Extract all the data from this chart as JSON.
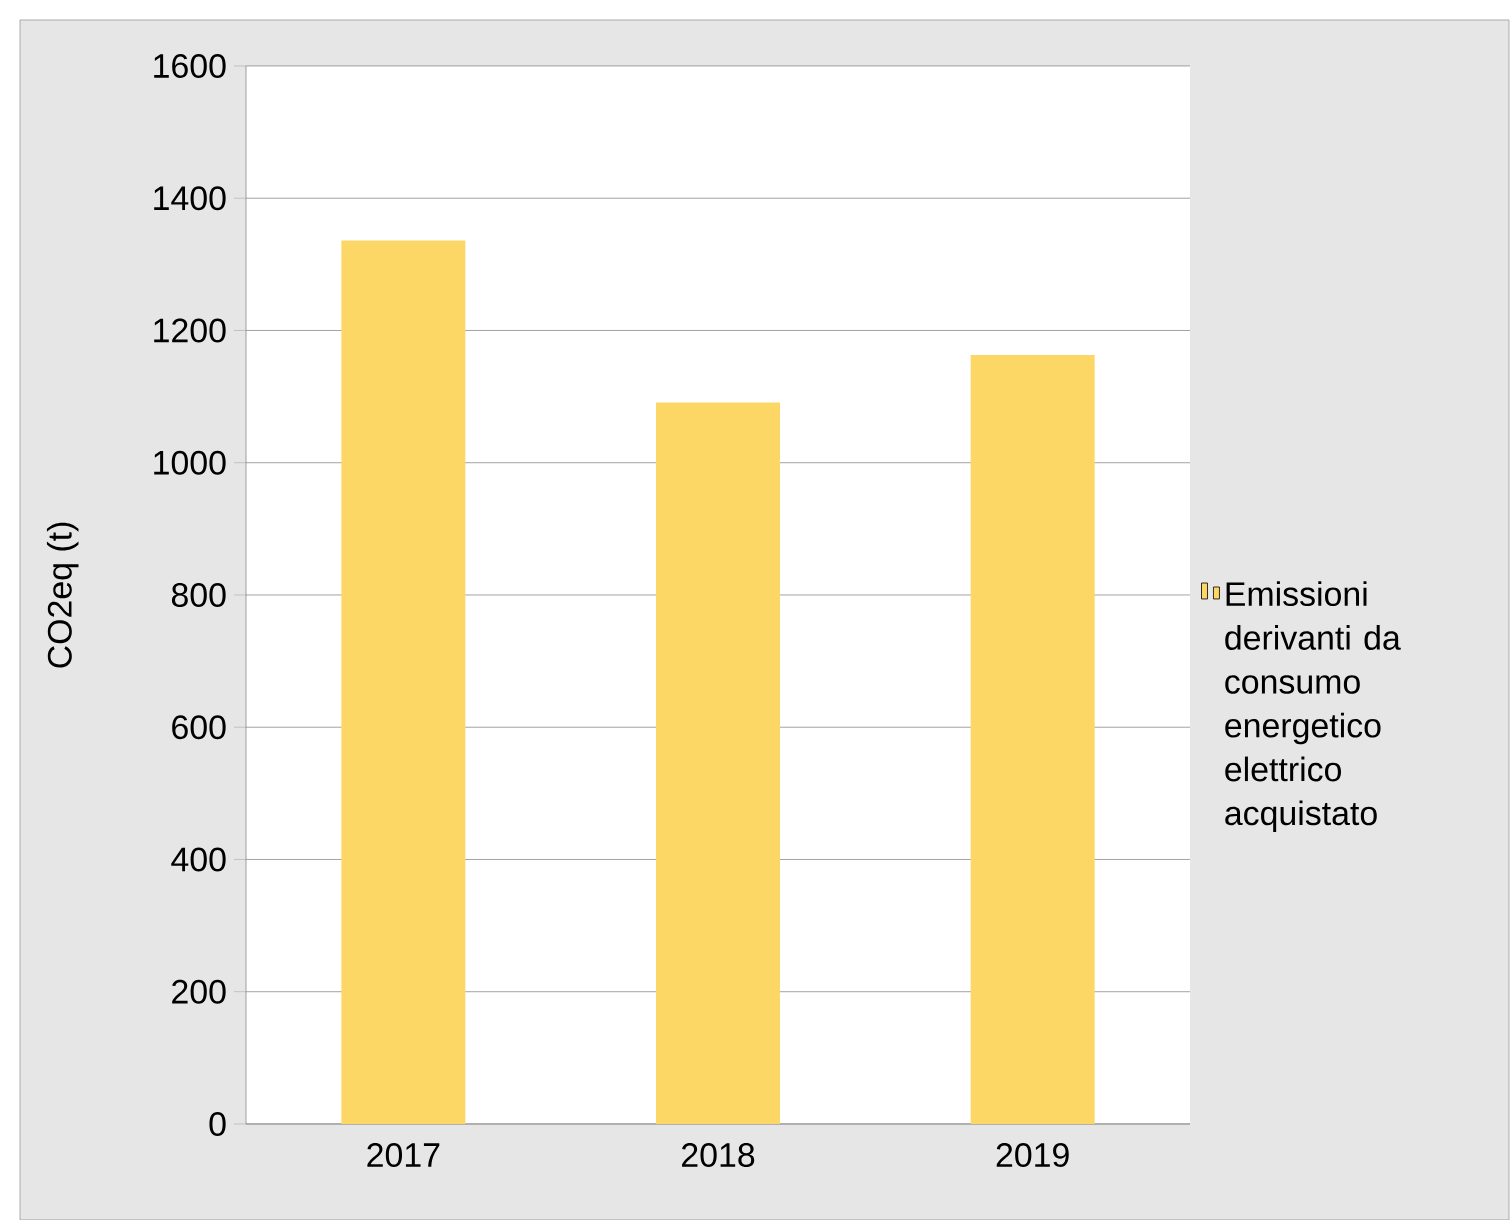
{
  "chart_data": {
    "type": "bar",
    "ylabel": "CO2eq (t)",
    "categories": [
      "2017",
      "2018",
      "2019"
    ],
    "series": [
      {
        "name": "Emissioni derivanti da consumo energetico elettrico acquistato",
        "color": "#fcd766",
        "values": [
          1336,
          1091,
          1163
        ]
      }
    ],
    "ylim": [
      0,
      1600
    ],
    "yticks": [
      0,
      200,
      400,
      600,
      800,
      1000,
      1200,
      1400,
      1600
    ],
    "grid": "y",
    "legend": "right"
  }
}
